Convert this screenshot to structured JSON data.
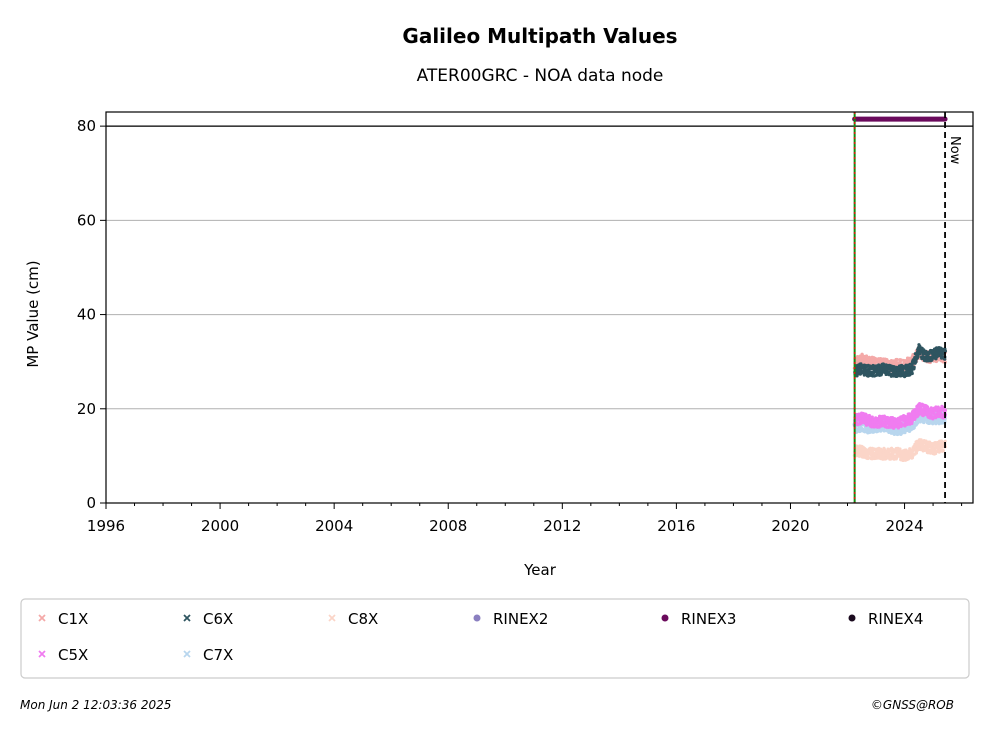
{
  "chart_data": {
    "type": "scatter",
    "title": "Galileo Multipath Values",
    "subtitle": "ATER00GRC - NOA data node",
    "xlabel": "Year",
    "ylabel": "MP Value (cm)",
    "xlim": [
      1996.0,
      2026.4
    ],
    "ylim": [
      0,
      83
    ],
    "x_ticks": [
      1996,
      2000,
      2004,
      2008,
      2012,
      2016,
      2020,
      2024
    ],
    "y_ticks": [
      0,
      20,
      40,
      60,
      80
    ],
    "grid": "horizontal",
    "reference_line_y": 80,
    "data_start": 2022.25,
    "now": 2025.42,
    "now_label": "Now",
    "series": [
      {
        "name": "C1X",
        "color": "#f4a9a8",
        "x": [
          2022.25,
          2022.5,
          2022.75,
          2023.0,
          2023.25,
          2023.5,
          2023.75,
          2024.0,
          2024.25,
          2024.5,
          2024.75,
          2025.0,
          2025.25,
          2025.42
        ],
        "y": [
          29.5,
          30.5,
          30,
          29.5,
          29.5,
          29,
          29.5,
          29.5,
          30,
          32,
          31,
          31,
          31.5,
          31
        ]
      },
      {
        "name": "C5X",
        "color": "#f07cf0",
        "x": [
          2022.25,
          2022.5,
          2022.75,
          2023.0,
          2023.25,
          2023.5,
          2023.75,
          2024.0,
          2024.25,
          2024.5,
          2024.75,
          2025.0,
          2025.25,
          2025.42
        ],
        "y": [
          17.5,
          18,
          17.5,
          17,
          17.5,
          17,
          17,
          17.5,
          18,
          20,
          19.5,
          19,
          19.5,
          19
        ]
      },
      {
        "name": "C6X",
        "color": "#2f5560",
        "x": [
          2022.25,
          2022.5,
          2022.75,
          2023.0,
          2023.25,
          2023.5,
          2023.75,
          2024.0,
          2024.25,
          2024.5,
          2024.75,
          2025.0,
          2025.25,
          2025.42
        ],
        "y": [
          28,
          28.5,
          28,
          28,
          28.5,
          28,
          28,
          28,
          28.5,
          32.5,
          31,
          31.5,
          32,
          31.5
        ]
      },
      {
        "name": "C7X",
        "color": "#b8d6ee",
        "x": [
          2022.25,
          2022.5,
          2022.75,
          2023.0,
          2023.25,
          2023.5,
          2023.75,
          2024.0,
          2024.25,
          2024.5,
          2024.75,
          2025.0,
          2025.25,
          2025.42
        ],
        "y": [
          16,
          16.5,
          16,
          16,
          16.5,
          16,
          15.5,
          16,
          16.5,
          18.5,
          18,
          18,
          18,
          18
        ]
      },
      {
        "name": "C8X",
        "color": "#fbd5c8",
        "x": [
          2022.25,
          2022.5,
          2022.75,
          2023.0,
          2023.25,
          2023.5,
          2023.75,
          2024.0,
          2024.25,
          2024.5,
          2024.75,
          2025.0,
          2025.25,
          2025.42
        ],
        "y": [
          11,
          11,
          10.5,
          10.5,
          10.5,
          10.5,
          10.5,
          10,
          10.5,
          12.5,
          12,
          11.5,
          12,
          12
        ]
      },
      {
        "name": "RINEX2",
        "color": "#8a7fc0",
        "x": [],
        "y": []
      },
      {
        "name": "RINEX3",
        "color": "#6a0a5c",
        "x": [
          2022.25,
          2025.42
        ],
        "y": [
          81.5,
          81.5
        ]
      },
      {
        "name": "RINEX4",
        "color": "#1a0a1e",
        "x": [],
        "y": []
      }
    ],
    "legend": "bottom"
  },
  "footer": {
    "timestamp": "Mon Jun  2 12:03:36 2025",
    "credit": "©GNSS@ROB"
  }
}
